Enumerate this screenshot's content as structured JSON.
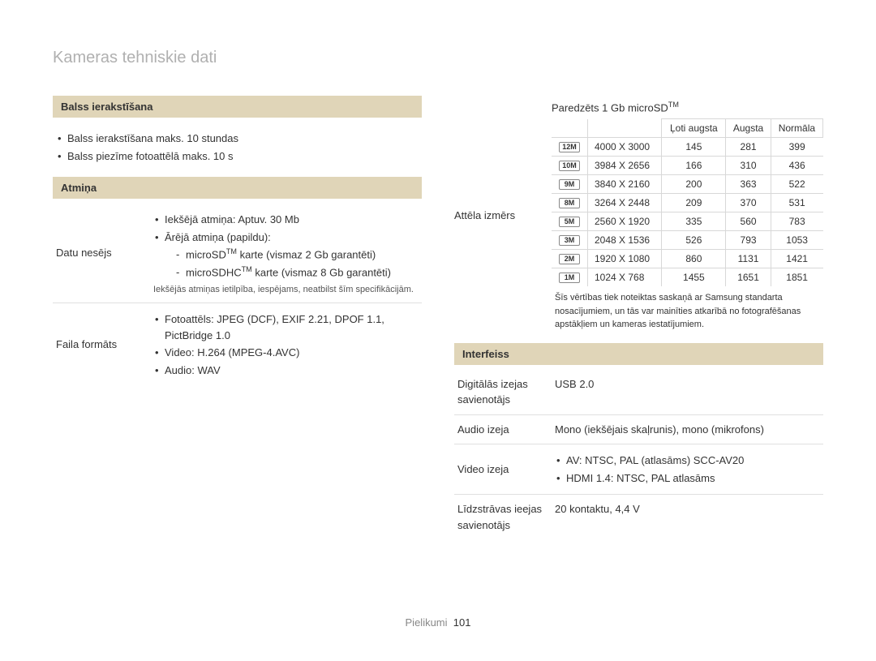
{
  "page_title": "Kameras tehniskie dati",
  "footer_label": "Pielikumi",
  "footer_page": "101",
  "left": {
    "voice_header": "Balss ierakstīšana",
    "voice_bullets": [
      "Balss ierakstīšana maks. 10 stundas",
      "Balss piezīme fotoattēlā maks. 10 s"
    ],
    "memory_header": "Atmiņa",
    "data_carrier_label": "Datu nesējs",
    "data_carrier_b1": "Iekšējā atmiņa: Aptuv. 30 Mb",
    "data_carrier_b2": "Ārējā atmiņa (papildu):",
    "data_carrier_d1_pre": "microSD",
    "data_carrier_d1_post": " karte (vismaz 2 Gb garantēti)",
    "data_carrier_d2_pre": "microSDHC",
    "data_carrier_d2_post": " karte (vismaz 8 Gb garantēti)",
    "data_carrier_note": "Iekšējās atmiņas ietilpība, iespējams, neatbilst šīm specifikācijām.",
    "file_format_label": "Faila formāts",
    "file_format_b1": "Fotoattēls: JPEG (DCF), EXIF 2.21, DPOF 1.1, PictBridge 1.0",
    "file_format_b2": "Video: H.264 (MPEG-4.AVC)",
    "file_format_b3": "Audio: WAV"
  },
  "right": {
    "predicted_pre": "Paredzēts 1 Gb microSD",
    "image_size_label": "Attēla izmērs",
    "table": {
      "h1": "Ļoti augsta",
      "h2": "Augsta",
      "h3": "Normāla",
      "rows": [
        {
          "icon": "12M",
          "res": "4000 X 3000",
          "c1": "145",
          "c2": "281",
          "c3": "399"
        },
        {
          "icon": "10M",
          "res": "3984 X 2656",
          "c1": "166",
          "c2": "310",
          "c3": "436"
        },
        {
          "icon": "9M",
          "res": "3840 X 2160",
          "c1": "200",
          "c2": "363",
          "c3": "522"
        },
        {
          "icon": "8M",
          "res": "3264 X 2448",
          "c1": "209",
          "c2": "370",
          "c3": "531"
        },
        {
          "icon": "5M",
          "res": "2560 X 1920",
          "c1": "335",
          "c2": "560",
          "c3": "783"
        },
        {
          "icon": "3M",
          "res": "2048 X 1536",
          "c1": "526",
          "c2": "793",
          "c3": "1053"
        },
        {
          "icon": "2M",
          "res": "1920 X 1080",
          "c1": "860",
          "c2": "1131",
          "c3": "1421"
        },
        {
          "icon": "1M",
          "res": "1024 X 768",
          "c1": "1455",
          "c2": "1651",
          "c3": "1851"
        }
      ]
    },
    "table_note": "Šīs vērtības tiek noteiktas saskaņā ar Samsung standarta nosacījumiem, un tās var mainīties atkarībā no fotografēšanas apstākļiem un kameras iestatījumiem.",
    "interface_header": "Interfeiss",
    "digital_out_label": "Digitālās izejas savienotājs",
    "digital_out_value": "USB 2.0",
    "audio_out_label": "Audio izeja",
    "audio_out_value": "Mono (iekšējais skaļrunis), mono (mikrofons)",
    "video_out_label": "Video izeja",
    "video_out_b1": "AV: NTSC, PAL (atlasāms) SCC-AV20",
    "video_out_b2": "HDMI 1.4: NTSC, PAL atlasāms",
    "dc_in_label": "Līdzstrāvas ieejas savienotājs",
    "dc_in_value": "20 kontaktu, 4,4 V"
  }
}
